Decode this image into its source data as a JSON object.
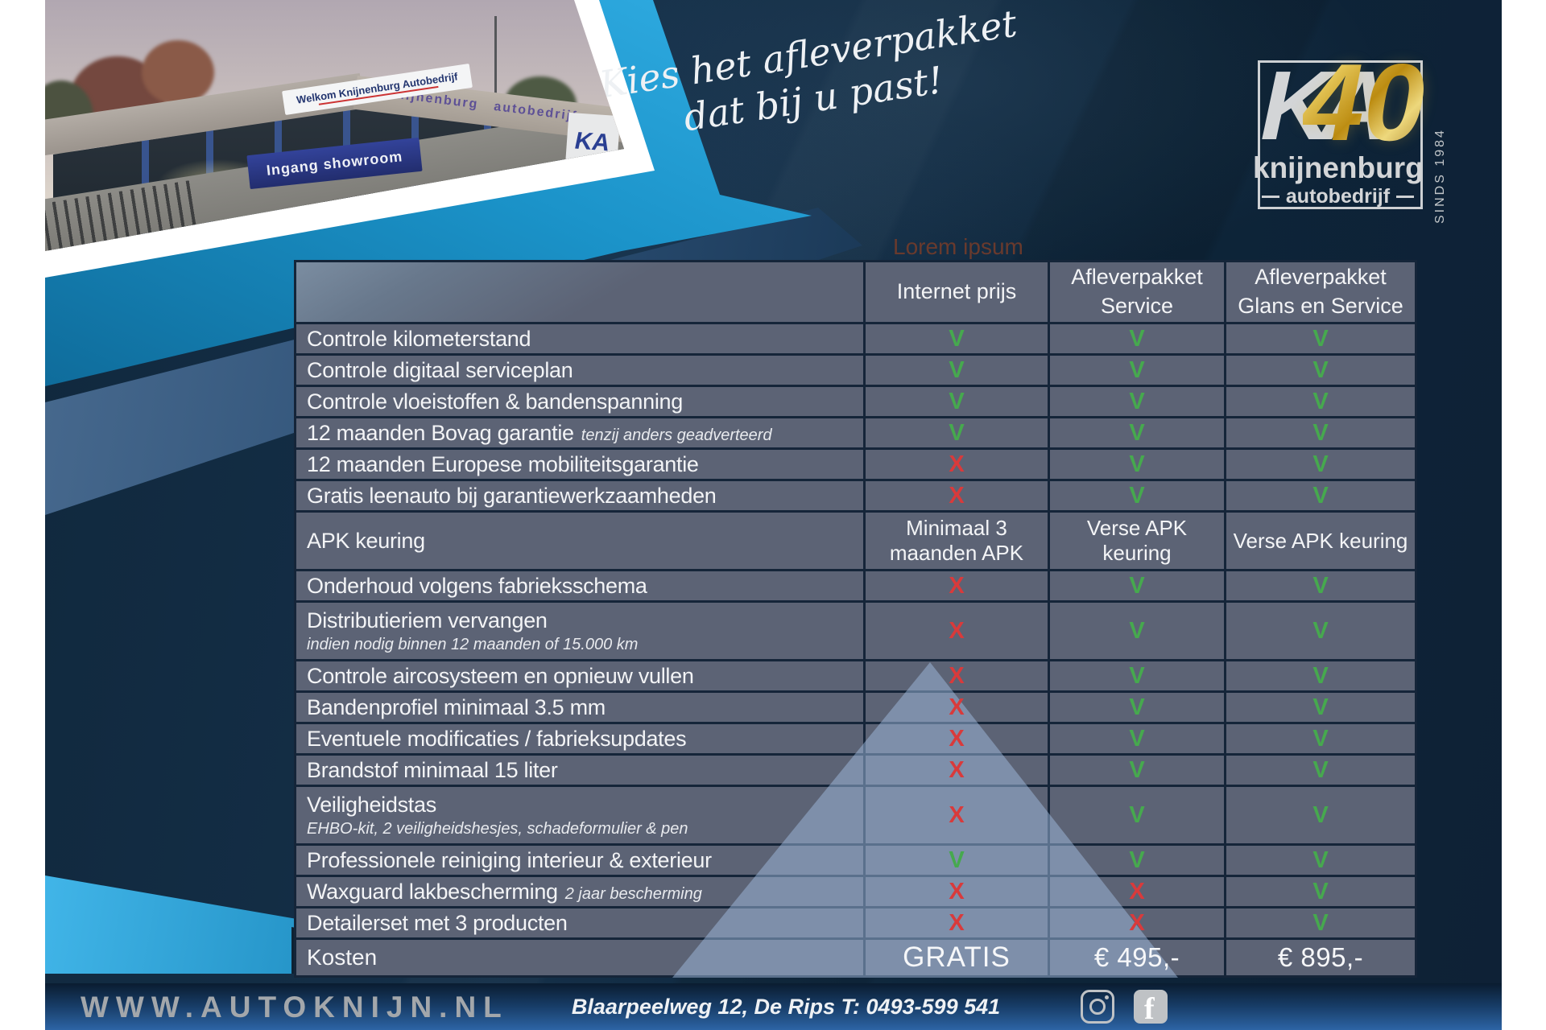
{
  "header": {
    "tagline_line1": "Kies het afleverpakket",
    "tagline_line2": "dat bij u past!"
  },
  "photo": {
    "welcome_sign": "Welkom Knijnenburg Autobedrijf",
    "entrance_sign": "Ingang showroom",
    "fascia_brand": "knijnenburg",
    "fascia_sub": "autobedrijf",
    "pillar_logo": "KA"
  },
  "logo": {
    "monogram": "KA",
    "anniversary": "40",
    "brand": "knijnenburg",
    "brand_sub": "autobedrijf",
    "since": "SINDS 1984"
  },
  "watermark": "Lorem ipsum",
  "table": {
    "column_headers": [
      "Internet prijs",
      "Afleverpakket Service",
      "Afleverpakket Glans en Service"
    ],
    "rows": [
      {
        "label": "Controle kilometerstand",
        "values": [
          "V",
          "V",
          "V"
        ]
      },
      {
        "label": "Controle digitaal serviceplan",
        "values": [
          "V",
          "V",
          "V"
        ]
      },
      {
        "label": "Controle vloeistoffen & bandenspanning",
        "values": [
          "V",
          "V",
          "V"
        ]
      },
      {
        "label": "12 maanden Bovag garantie",
        "label_note": "tenzij anders geadverteerd",
        "values": [
          "V",
          "V",
          "V"
        ]
      },
      {
        "label": "12 maanden Europese mobiliteitsgarantie",
        "values": [
          "X",
          "V",
          "V"
        ]
      },
      {
        "label": "Gratis leenauto bij garantiewerkzaamheden",
        "values": [
          "X",
          "V",
          "V"
        ]
      },
      {
        "label": "APK keuring",
        "values": [
          "Minimaal 3 maanden APK",
          "Verse APK keuring",
          "Verse APK keuring"
        ]
      },
      {
        "label": "Onderhoud volgens fabrieksschema",
        "values": [
          "X",
          "V",
          "V"
        ]
      },
      {
        "label": "Distributieriem vervangen",
        "sublabel": "indien nodig binnen 12 maanden of 15.000 km",
        "values": [
          "X",
          "V",
          "V"
        ]
      },
      {
        "label": "Controle aircosysteem en opnieuw vullen",
        "values": [
          "X",
          "V",
          "V"
        ]
      },
      {
        "label": "Bandenprofiel minimaal 3.5 mm",
        "values": [
          "X",
          "V",
          "V"
        ]
      },
      {
        "label": "Eventuele modificaties / fabrieksupdates",
        "values": [
          "X",
          "V",
          "V"
        ]
      },
      {
        "label": "Brandstof minimaal 15 liter",
        "values": [
          "X",
          "V",
          "V"
        ]
      },
      {
        "label": "Veiligheidstas",
        "sublabel": "EHBO-kit, 2 veiligheidshesjes, schadeformulier & pen",
        "values": [
          "X",
          "V",
          "V"
        ]
      },
      {
        "label": "Professionele reiniging interieur & exterieur",
        "values": [
          "V",
          "V",
          "V"
        ]
      },
      {
        "label": "Waxguard lakbescherming",
        "label_note": "2 jaar bescherming",
        "values": [
          "X",
          "X",
          "V"
        ]
      },
      {
        "label": "Detailerset met 3 producten",
        "values": [
          "X",
          "X",
          "V"
        ]
      }
    ],
    "cost_row": {
      "label": "Kosten",
      "values": [
        "GRATIS",
        "€ 495,-",
        "€ 895,-"
      ]
    }
  },
  "footer": {
    "website": "WWW.AUTOKNIJN.NL",
    "address": "Blaarpeelweg 12, De Rips  T: 0493-599 541"
  },
  "colors": {
    "accent_cyan": "#1b9cd9",
    "check_green": "#46a94e",
    "cross_red": "#d93a3b",
    "table_cell": "#5c6375",
    "background_navy": "#10283d",
    "gold": "#caa42c"
  }
}
